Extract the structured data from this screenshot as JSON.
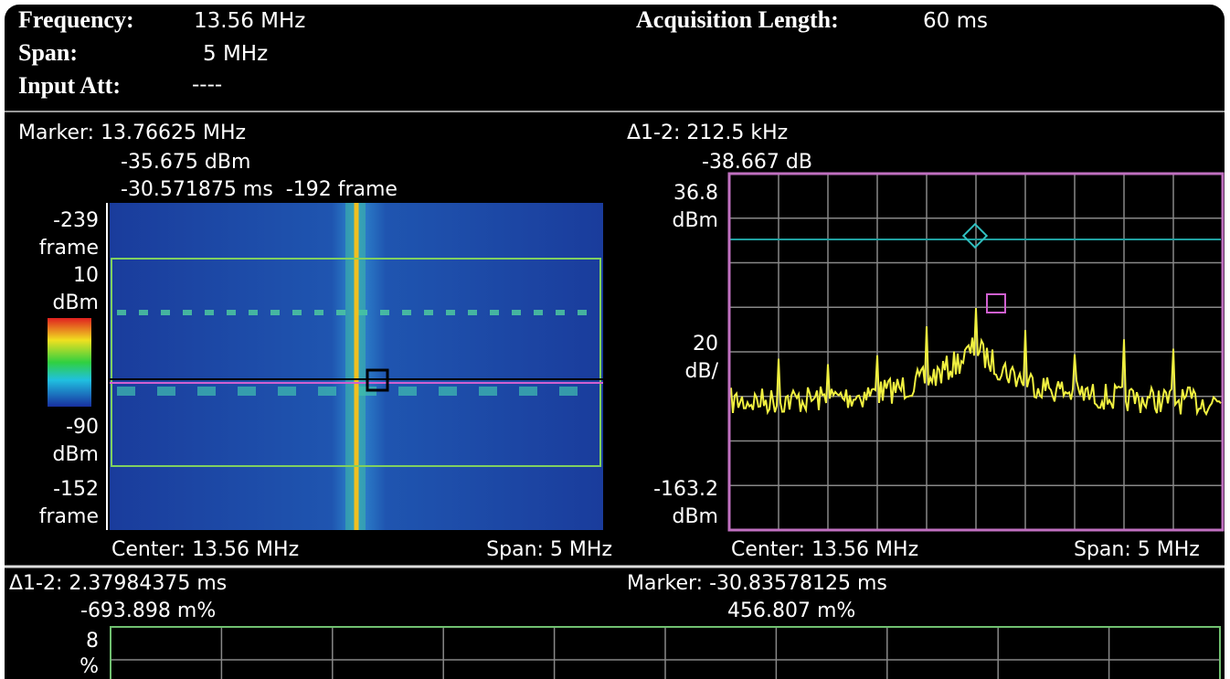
{
  "header": {
    "frequency_label": "Frequency:",
    "frequency": "13.56 MHz",
    "span_label": "Span:",
    "span": "5 MHz",
    "input_att_label": "Input Att:",
    "input_att": "----",
    "acquisition_label": "Acquisition Length:",
    "acquisition": "60 ms"
  },
  "spectrogram": {
    "marker": "Marker: 13.76625 MHz",
    "marker_level": "-35.675 dBm",
    "marker_time": "-30.571875 ms  -192 frame",
    "top_frame": "-239",
    "top_frame_unit": "frame",
    "scale_top": "10",
    "scale_top_unit": "dBm",
    "scale_bottom": "-90",
    "scale_bottom_unit": "dBm",
    "bottom_frame": "-152",
    "bottom_frame_unit": "frame",
    "center": "Center: 13.56 MHz",
    "span": "Span: 5 MHz"
  },
  "spectrum": {
    "delta": "Δ1-2: 212.5 kHz",
    "delta_level": "-38.667 dB",
    "ref_level": "36.8",
    "ref_unit": "dBm",
    "scale": "20",
    "scale_unit": "dB/",
    "bottom_level": "-163.2",
    "bottom_unit": "dBm",
    "center": "Center: 13.56 MHz",
    "span": "Span: 5 MHz"
  },
  "time_panel": {
    "delta": "Δ1-2: 2.37984375 ms",
    "delta_value": "-693.898 m%",
    "marker": "Marker: -30.83578125 ms",
    "marker_value": "456.807 m%",
    "top": "8",
    "top_unit": "%"
  }
}
